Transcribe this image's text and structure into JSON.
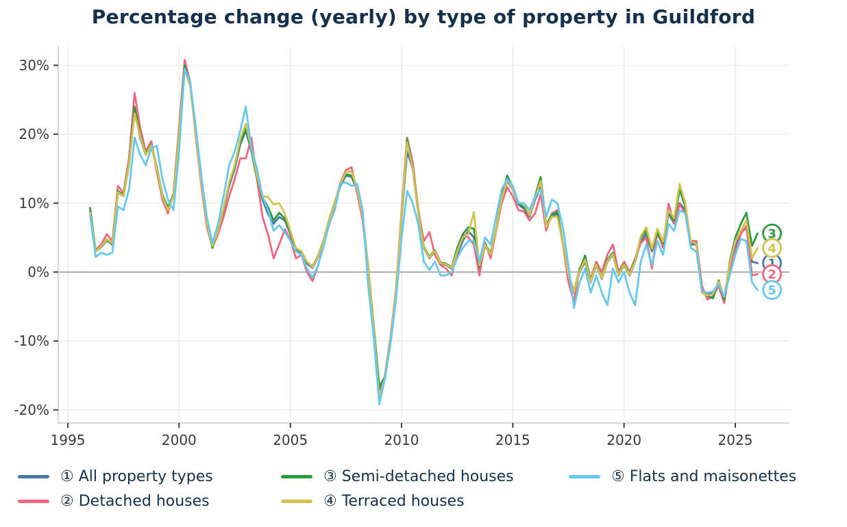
{
  "title": "Percentage change (yearly) by type of property in Guildford",
  "colors": {
    "background": "#ffffff",
    "title_text": "#14304a",
    "legend_text": "#14304a",
    "axis_text": "#3a3a3a",
    "grid": "#e9e9e9",
    "zero_line": "#aaaaaa",
    "spine": "#d9d9d9",
    "tick": "#3f3f3f"
  },
  "chart_data": {
    "type": "line",
    "title": "Percentage change (yearly) by type of property in Guildford",
    "xlabel": "",
    "ylabel": "",
    "x_unit": "year",
    "x_start": 1996.0,
    "x_step": 0.25,
    "x_axis_range": [
      1994.6,
      2027.4
    ],
    "y_axis_range": [
      -21.9,
      32.7
    ],
    "grid": true,
    "legend_position": "bottom",
    "x_tick_years": [
      1995,
      2000,
      2005,
      2010,
      2015,
      2020,
      2025
    ],
    "x_tick_labels": [
      "1995",
      "2000",
      "2005",
      "2010",
      "2015",
      "2020",
      "2025"
    ],
    "y_tick_values": [
      30,
      20,
      10,
      0,
      -10,
      -20
    ],
    "y_tick_labels": [
      "30%",
      "20%",
      "10%",
      "0%",
      "-10%",
      "-20%"
    ],
    "series": [
      {
        "name": "All property types",
        "legend_label": "① All property types",
        "slug": "all-property-types",
        "marker_digit": "1",
        "color": "#4a79a7",
        "end_value": 1.3,
        "values": [
          8.8,
          3.0,
          3.6,
          4.6,
          4.0,
          11.5,
          11.0,
          15.5,
          23.5,
          19.5,
          17.0,
          18.3,
          15.0,
          11.0,
          9.2,
          11.0,
          20.0,
          29.5,
          27.0,
          20.0,
          13.0,
          7.0,
          4.0,
          6.0,
          9.0,
          12.5,
          15.0,
          18.5,
          20.5,
          17.5,
          13.5,
          10.5,
          8.4,
          7.0,
          8.0,
          7.5,
          5.5,
          3.2,
          2.8,
          1.2,
          0.6,
          2.2,
          4.5,
          7.5,
          10.0,
          12.5,
          14.0,
          13.8,
          12.0,
          8.0,
          0.5,
          -8.0,
          -17.0,
          -15.5,
          -10.0,
          -3.0,
          8.0,
          17.5,
          15.0,
          8.5,
          3.5,
          2.0,
          3.0,
          1.2,
          1.0,
          0.5,
          2.5,
          4.5,
          6.0,
          5.0,
          0.5,
          3.8,
          2.5,
          6.0,
          10.5,
          13.2,
          12.0,
          9.8,
          9.2,
          8.0,
          10.5,
          12.3,
          6.5,
          8.0,
          8.5,
          4.0,
          -0.5,
          -3.0,
          0.0,
          1.5,
          -1.5,
          1.0,
          -1.0,
          1.5,
          2.5,
          -0.5,
          1.0,
          -0.5,
          1.5,
          4.5,
          5.5,
          3.0,
          5.5,
          4.0,
          8.5,
          7.0,
          10.0,
          9.0,
          4.0,
          4.0,
          -2.5,
          -3.3,
          -3.0,
          -1.5,
          -3.8,
          1.0,
          3.5,
          6.0,
          6.3,
          1.5,
          1.3
        ]
      },
      {
        "name": "Detached houses",
        "legend_label": "② Detached houses",
        "slug": "detached-houses",
        "marker_digit": "2",
        "color": "#f2657c",
        "end_value": -0.3,
        "values": [
          8.5,
          3.2,
          4.0,
          5.5,
          4.5,
          12.5,
          11.5,
          16.5,
          26.0,
          21.0,
          17.5,
          19.0,
          14.5,
          10.5,
          8.5,
          11.5,
          21.0,
          30.8,
          27.5,
          19.5,
          12.5,
          6.5,
          3.6,
          5.5,
          8.0,
          11.0,
          13.5,
          16.5,
          16.5,
          19.5,
          13.5,
          8.0,
          5.4,
          2.0,
          4.0,
          6.2,
          4.8,
          2.0,
          2.5,
          0.0,
          -1.3,
          1.0,
          4.0,
          7.0,
          10.0,
          13.0,
          14.8,
          15.2,
          11.5,
          7.5,
          0.0,
          -8.5,
          -18.2,
          -15.0,
          -9.5,
          -2.5,
          9.0,
          19.5,
          16.0,
          9.0,
          4.5,
          5.8,
          2.5,
          1.0,
          0.5,
          -0.5,
          3.0,
          5.5,
          5.0,
          4.0,
          -0.5,
          4.3,
          2.0,
          6.0,
          10.0,
          12.3,
          11.0,
          9.0,
          8.8,
          7.5,
          8.5,
          11.3,
          6.0,
          8.5,
          9.0,
          4.0,
          -1.5,
          -4.3,
          0.5,
          2.0,
          -1.0,
          1.5,
          0.0,
          2.5,
          4.0,
          0.0,
          1.5,
          0.0,
          2.0,
          4.2,
          5.0,
          0.5,
          6.0,
          3.5,
          9.9,
          7.0,
          9.8,
          8.5,
          4.5,
          4.5,
          -2.0,
          -4.0,
          -3.5,
          -2.0,
          -4.5,
          0.5,
          3.0,
          5.5,
          6.7,
          -0.5,
          -0.3
        ]
      },
      {
        "name": "Semi-detached houses",
        "legend_label": "③ Semi-detached houses",
        "slug": "semi-detached-houses",
        "marker_digit": "3",
        "color": "#2c9a3d",
        "end_value": 5.6,
        "values": [
          9.3,
          3.1,
          3.7,
          4.7,
          4.1,
          11.8,
          11.2,
          15.8,
          24.0,
          20.0,
          17.2,
          18.5,
          15.2,
          11.2,
          9.4,
          11.2,
          20.3,
          30.0,
          27.2,
          20.2,
          13.2,
          7.2,
          3.5,
          6.1,
          9.2,
          12.8,
          15.3,
          18.8,
          20.8,
          17.8,
          13.8,
          10.8,
          9.4,
          7.5,
          8.6,
          7.8,
          5.8,
          3.4,
          3.0,
          1.4,
          0.8,
          2.4,
          4.7,
          7.7,
          10.2,
          12.7,
          14.2,
          14.0,
          12.2,
          8.2,
          0.8,
          -7.8,
          -16.6,
          -15.2,
          -9.8,
          -2.8,
          8.2,
          19.3,
          15.2,
          8.7,
          3.7,
          2.2,
          3.2,
          1.4,
          1.2,
          0.7,
          3.5,
          5.5,
          6.5,
          6.3,
          0.8,
          4.0,
          2.8,
          6.3,
          10.8,
          14.0,
          12.3,
          10.0,
          9.4,
          8.3,
          11.0,
          13.8,
          6.8,
          8.3,
          8.7,
          4.2,
          -0.3,
          -2.8,
          0.3,
          2.4,
          -1.3,
          1.2,
          -0.8,
          1.8,
          2.8,
          -0.3,
          1.2,
          -0.3,
          1.8,
          5.0,
          6.0,
          3.2,
          5.8,
          4.2,
          8.8,
          7.5,
          11.9,
          9.5,
          4.2,
          4.2,
          -2.8,
          -3.5,
          -3.8,
          -1.2,
          -4.0,
          1.5,
          5.0,
          7.0,
          8.6,
          3.8,
          5.6
        ]
      },
      {
        "name": "Terraced houses",
        "legend_label": "④ Terraced houses",
        "slug": "terraced-houses",
        "marker_digit": "4",
        "color": "#d3c24f",
        "end_value": 3.5,
        "values": [
          8.6,
          3.0,
          3.7,
          4.8,
          4.2,
          11.6,
          11.0,
          15.6,
          23.0,
          19.8,
          17.0,
          18.4,
          15.0,
          11.0,
          9.0,
          11.0,
          20.0,
          29.4,
          27.0,
          19.8,
          13.0,
          7.0,
          3.8,
          6.0,
          9.3,
          13.0,
          15.5,
          19.3,
          21.5,
          18.0,
          14.0,
          11.0,
          10.9,
          9.8,
          10.0,
          8.5,
          6.0,
          3.5,
          3.0,
          1.5,
          0.7,
          2.3,
          4.6,
          7.6,
          10.1,
          12.8,
          14.5,
          14.6,
          12.1,
          8.1,
          0.6,
          -8.2,
          -18.4,
          -15.3,
          -9.9,
          -2.9,
          8.5,
          18.8,
          15.1,
          8.6,
          3.6,
          2.1,
          3.1,
          1.3,
          1.1,
          0.6,
          3.0,
          5.0,
          5.5,
          8.7,
          1.0,
          3.9,
          2.6,
          6.2,
          10.6,
          13.4,
          12.1,
          10.0,
          10.0,
          8.2,
          10.8,
          13.2,
          6.6,
          8.0,
          8.0,
          4.1,
          -0.4,
          -2.9,
          0.1,
          1.8,
          -1.4,
          1.1,
          -0.9,
          1.6,
          2.6,
          -0.4,
          1.1,
          -0.4,
          1.6,
          5.2,
          6.5,
          3.4,
          6.3,
          4.4,
          9.0,
          7.8,
          12.8,
          10.0,
          4.4,
          4.1,
          -3.0,
          -3.4,
          -3.2,
          -1.4,
          -3.6,
          1.2,
          4.5,
          6.0,
          7.5,
          2.0,
          3.5
        ]
      },
      {
        "name": "Flats and maisonettes",
        "legend_label": "⑤ Flats and maisonettes",
        "slug": "flats-and-maisonettes",
        "marker_digit": "5",
        "color": "#66c7ef",
        "end_value": -2.6,
        "values": [
          8.2,
          2.2,
          2.8,
          2.5,
          2.8,
          9.5,
          9.0,
          12.0,
          19.5,
          17.0,
          15.5,
          18.0,
          18.3,
          13.5,
          10.5,
          9.0,
          17.5,
          29.5,
          27.5,
          21.0,
          14.0,
          8.0,
          4.2,
          7.0,
          11.0,
          15.5,
          17.5,
          20.5,
          24.0,
          18.0,
          15.0,
          11.0,
          8.9,
          6.0,
          6.8,
          5.8,
          4.5,
          3.0,
          2.5,
          0.5,
          -0.8,
          1.0,
          3.8,
          7.0,
          9.0,
          12.8,
          13.0,
          12.5,
          12.8,
          9.0,
          -2.0,
          -9.5,
          -19.2,
          -15.5,
          -10.5,
          -4.0,
          5.0,
          11.8,
          10.0,
          7.0,
          1.5,
          0.3,
          1.5,
          -0.5,
          -0.5,
          0.0,
          2.0,
          3.5,
          4.5,
          4.5,
          1.5,
          5.0,
          4.0,
          8.0,
          12.0,
          13.5,
          12.5,
          10.0,
          10.0,
          9.0,
          11.0,
          12.0,
          8.0,
          10.5,
          10.0,
          6.5,
          1.0,
          -5.2,
          -1.5,
          0.5,
          -3.0,
          -0.5,
          -3.0,
          -4.8,
          0.5,
          -1.5,
          0.0,
          -3.0,
          -4.8,
          1.5,
          4.0,
          1.0,
          4.5,
          2.5,
          7.0,
          6.0,
          9.0,
          8.5,
          3.5,
          3.0,
          -2.8,
          -3.0,
          -2.8,
          -1.8,
          -3.5,
          -0.5,
          2.5,
          4.8,
          4.5,
          -1.5,
          -2.6
        ]
      }
    ]
  }
}
